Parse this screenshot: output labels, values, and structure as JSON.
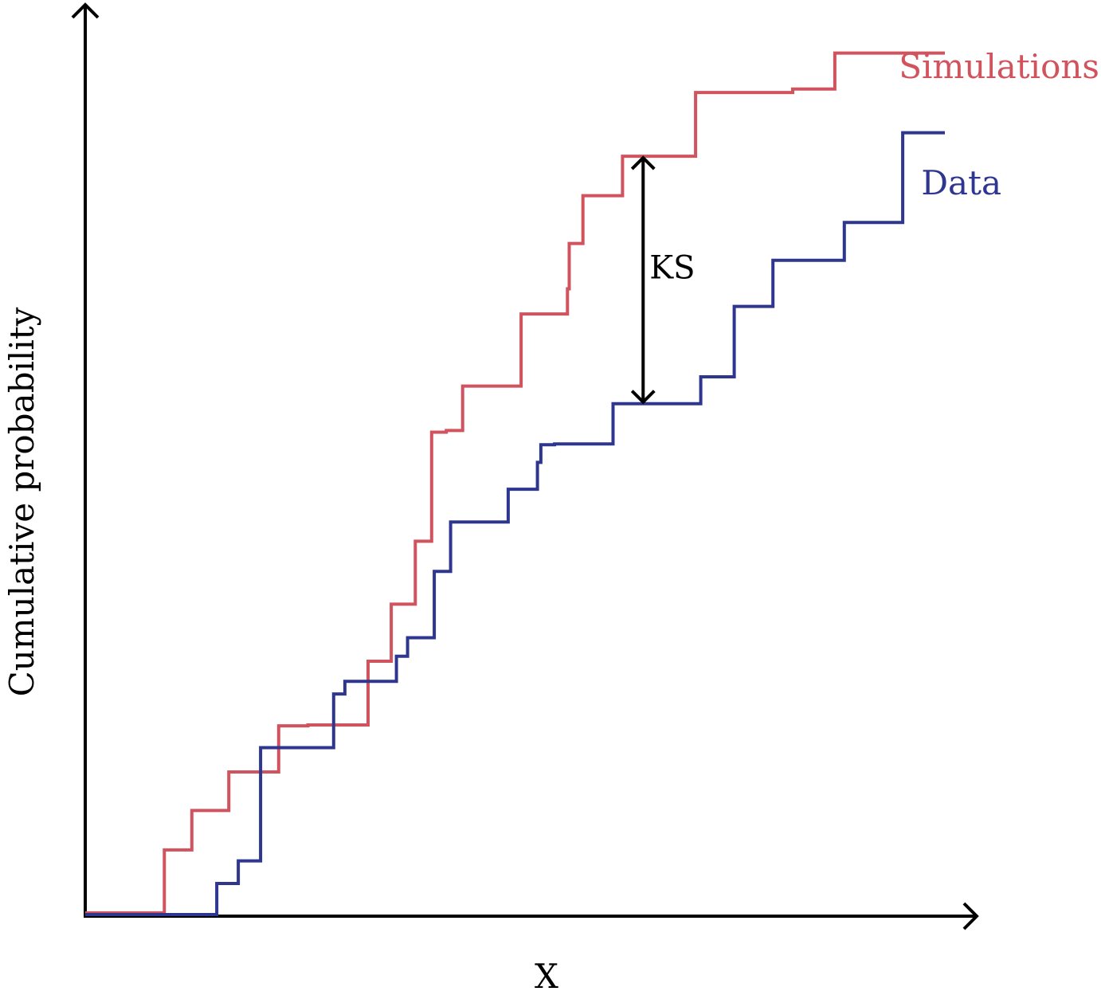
{
  "chart_data": {
    "type": "line",
    "step": true,
    "xlabel": "X",
    "ylabel": "Cumulative probability",
    "xlim": [
      0,
      1
    ],
    "ylim": [
      0,
      1
    ],
    "grid": false,
    "series": [
      {
        "name": "Simulations",
        "color": "#d0535e",
        "x": [
          0,
          0.092,
          0.124,
          0.167,
          0.225,
          0.259,
          0.329,
          0.356,
          0.384,
          0.403,
          0.42,
          0.439,
          0.507,
          0.561,
          0.563,
          0.579,
          0.625,
          0.71,
          0.823,
          0.872,
          1.0
        ],
        "y": [
          0.002,
          0.077,
          0.124,
          0.17,
          0.225,
          0.226,
          0.302,
          0.37,
          0.445,
          0.575,
          0.577,
          0.63,
          0.716,
          0.746,
          0.8,
          0.857,
          0.904,
          0.98,
          0.984,
          1.027,
          1.027
        ]
      },
      {
        "name": "Data",
        "color": "#2e3690",
        "x": [
          0,
          0.153,
          0.178,
          0.204,
          0.289,
          0.302,
          0.362,
          0.375,
          0.406,
          0.425,
          0.492,
          0.526,
          0.53,
          0.546,
          0.614,
          0.716,
          0.755,
          0.8,
          0.883,
          0.951,
          1.0
        ],
        "y": [
          0.0,
          0.037,
          0.064,
          0.199,
          0.263,
          0.278,
          0.308,
          0.33,
          0.409,
          0.468,
          0.507,
          0.539,
          0.56,
          0.561,
          0.609,
          0.641,
          0.725,
          0.78,
          0.825,
          0.932,
          0.932
        ]
      }
    ],
    "annotations": [
      {
        "text": "KS",
        "x": 0.649,
        "y_low": 0.609,
        "y_high": 0.904
      }
    ]
  }
}
